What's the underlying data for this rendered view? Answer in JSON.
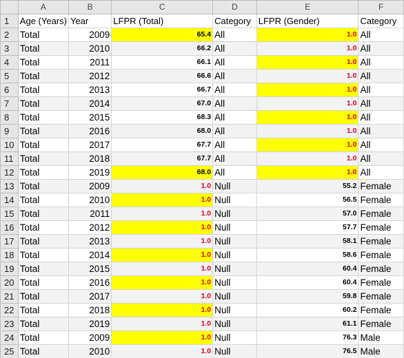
{
  "columns": [
    "A",
    "B",
    "C",
    "D",
    "E",
    "F"
  ],
  "headers": [
    "Age (Years)",
    "Year",
    "LFPR (Total)",
    "Category",
    "LFPR (Gender)",
    "Category"
  ],
  "colors": {
    "highlight": "#ffff00",
    "band": "#f2f2f2",
    "flag_text": "#e0001b"
  },
  "rows": [
    {
      "n": "2",
      "age": "Total",
      "year": "2009",
      "lfpr": "65.4",
      "lfpr_hl": true,
      "lfpr_red": false,
      "cat": "All",
      "gender": "1.0",
      "gender_hl": true,
      "gender_red": true,
      "cat2": "All"
    },
    {
      "n": "3",
      "age": "Total",
      "year": "2010",
      "lfpr": "66.2",
      "lfpr_hl": false,
      "lfpr_red": false,
      "cat": "All",
      "gender": "1.0",
      "gender_hl": false,
      "gender_red": true,
      "cat2": "All"
    },
    {
      "n": "4",
      "age": "Total",
      "year": "2011",
      "lfpr": "66.1",
      "lfpr_hl": false,
      "lfpr_red": false,
      "cat": "All",
      "gender": "1.0",
      "gender_hl": true,
      "gender_red": true,
      "cat2": "All"
    },
    {
      "n": "5",
      "age": "Total",
      "year": "2012",
      "lfpr": "66.6",
      "lfpr_hl": false,
      "lfpr_red": false,
      "cat": "All",
      "gender": "1.0",
      "gender_hl": false,
      "gender_red": true,
      "cat2": "All"
    },
    {
      "n": "6",
      "age": "Total",
      "year": "2013",
      "lfpr": "66.7",
      "lfpr_hl": false,
      "lfpr_red": false,
      "cat": "All",
      "gender": "1.0",
      "gender_hl": true,
      "gender_red": true,
      "cat2": "All"
    },
    {
      "n": "7",
      "age": "Total",
      "year": "2014",
      "lfpr": "67.0",
      "lfpr_hl": false,
      "lfpr_red": false,
      "cat": "All",
      "gender": "1.0",
      "gender_hl": false,
      "gender_red": true,
      "cat2": "All"
    },
    {
      "n": "8",
      "age": "Total",
      "year": "2015",
      "lfpr": "68.3",
      "lfpr_hl": false,
      "lfpr_red": false,
      "cat": "All",
      "gender": "1.0",
      "gender_hl": true,
      "gender_red": true,
      "cat2": "All"
    },
    {
      "n": "9",
      "age": "Total",
      "year": "2016",
      "lfpr": "68.0",
      "lfpr_hl": false,
      "lfpr_red": false,
      "cat": "All",
      "gender": "1.0",
      "gender_hl": false,
      "gender_red": true,
      "cat2": "All"
    },
    {
      "n": "10",
      "age": "Total",
      "year": "2017",
      "lfpr": "67.7",
      "lfpr_hl": false,
      "lfpr_red": false,
      "cat": "All",
      "gender": "1.0",
      "gender_hl": true,
      "gender_red": true,
      "cat2": "All"
    },
    {
      "n": "11",
      "age": "Total",
      "year": "2018",
      "lfpr": "67.7",
      "lfpr_hl": false,
      "lfpr_red": false,
      "cat": "All",
      "gender": "1.0",
      "gender_hl": false,
      "gender_red": true,
      "cat2": "All"
    },
    {
      "n": "12",
      "age": "Total",
      "year": "2019",
      "lfpr": "68.0",
      "lfpr_hl": true,
      "lfpr_red": false,
      "cat": "All",
      "gender": "1.0",
      "gender_hl": true,
      "gender_red": true,
      "cat2": "All"
    },
    {
      "n": "13",
      "age": "Total",
      "year": "2009",
      "lfpr": "1.0",
      "lfpr_hl": false,
      "lfpr_red": true,
      "cat": "Null",
      "gender": "55.2",
      "gender_hl": false,
      "gender_red": false,
      "cat2": "Female"
    },
    {
      "n": "14",
      "age": "Total",
      "year": "2010",
      "lfpr": "1.0",
      "lfpr_hl": true,
      "lfpr_red": true,
      "cat": "Null",
      "gender": "56.5",
      "gender_hl": false,
      "gender_red": false,
      "cat2": "Female"
    },
    {
      "n": "15",
      "age": "Total",
      "year": "2011",
      "lfpr": "1.0",
      "lfpr_hl": false,
      "lfpr_red": true,
      "cat": "Null",
      "gender": "57.0",
      "gender_hl": false,
      "gender_red": false,
      "cat2": "Female"
    },
    {
      "n": "16",
      "age": "Total",
      "year": "2012",
      "lfpr": "1.0",
      "lfpr_hl": true,
      "lfpr_red": true,
      "cat": "Null",
      "gender": "57.7",
      "gender_hl": false,
      "gender_red": false,
      "cat2": "Female"
    },
    {
      "n": "17",
      "age": "Total",
      "year": "2013",
      "lfpr": "1.0",
      "lfpr_hl": false,
      "lfpr_red": true,
      "cat": "Null",
      "gender": "58.1",
      "gender_hl": false,
      "gender_red": false,
      "cat2": "Female"
    },
    {
      "n": "18",
      "age": "Total",
      "year": "2014",
      "lfpr": "1.0",
      "lfpr_hl": true,
      "lfpr_red": true,
      "cat": "Null",
      "gender": "58.6",
      "gender_hl": false,
      "gender_red": false,
      "cat2": "Female"
    },
    {
      "n": "19",
      "age": "Total",
      "year": "2015",
      "lfpr": "1.0",
      "lfpr_hl": false,
      "lfpr_red": true,
      "cat": "Null",
      "gender": "60.4",
      "gender_hl": false,
      "gender_red": false,
      "cat2": "Female"
    },
    {
      "n": "20",
      "age": "Total",
      "year": "2016",
      "lfpr": "1.0",
      "lfpr_hl": true,
      "lfpr_red": true,
      "cat": "Null",
      "gender": "60.4",
      "gender_hl": false,
      "gender_red": false,
      "cat2": "Female"
    },
    {
      "n": "21",
      "age": "Total",
      "year": "2017",
      "lfpr": "1.0",
      "lfpr_hl": false,
      "lfpr_red": true,
      "cat": "Null",
      "gender": "59.8",
      "gender_hl": false,
      "gender_red": false,
      "cat2": "Female"
    },
    {
      "n": "22",
      "age": "Total",
      "year": "2018",
      "lfpr": "1.0",
      "lfpr_hl": true,
      "lfpr_red": true,
      "cat": "Null",
      "gender": "60.2",
      "gender_hl": false,
      "gender_red": false,
      "cat2": "Female"
    },
    {
      "n": "23",
      "age": "Total",
      "year": "2019",
      "lfpr": "1.0",
      "lfpr_hl": false,
      "lfpr_red": true,
      "cat": "Null",
      "gender": "61.1",
      "gender_hl": false,
      "gender_red": false,
      "cat2": "Female"
    },
    {
      "n": "24",
      "age": "Total",
      "year": "2009",
      "lfpr": "1.0",
      "lfpr_hl": true,
      "lfpr_red": true,
      "cat": "Null",
      "gender": "76.3",
      "gender_hl": false,
      "gender_red": false,
      "cat2": "Male"
    },
    {
      "n": "25",
      "age": "Total",
      "year": "2010",
      "lfpr": "1.0",
      "lfpr_hl": false,
      "lfpr_red": true,
      "cat": "Null",
      "gender": "76.5",
      "gender_hl": false,
      "gender_red": false,
      "cat2": "Male"
    }
  ]
}
